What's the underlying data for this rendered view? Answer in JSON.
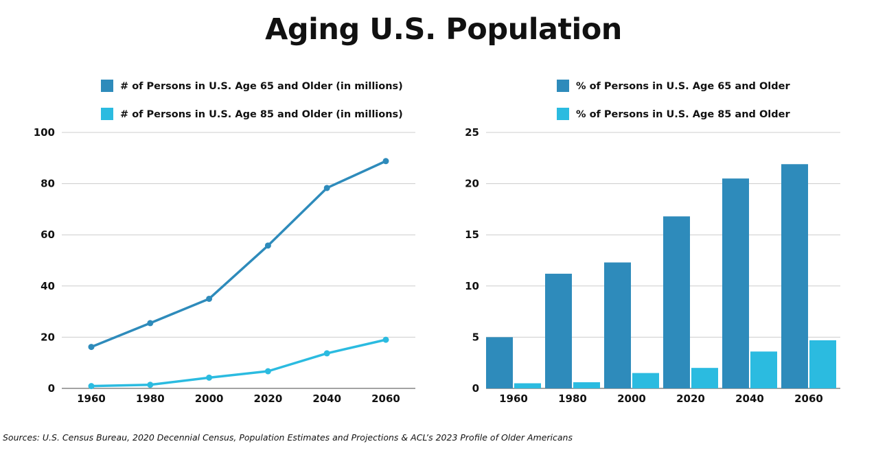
{
  "title": "Aging U.S. Population",
  "sources": "Sources: U.S. Census Bureau, 2020 Decennial Census, Population Estimates and Projections & ACL’s 2023 Profile of Older Americans",
  "colors": {
    "dark_blue": "#2e8bbb",
    "light_blue": "#2bbbe0"
  },
  "chart_data": [
    {
      "type": "line",
      "x": [
        "1960",
        "1980",
        "2000",
        "2020",
        "2040",
        "2060"
      ],
      "series": [
        {
          "name": "# of Persons in U.S. Age 65 and Older (in millions)",
          "color": "#2e8bbb",
          "values": [
            16.2,
            25.5,
            35.0,
            55.8,
            78.3,
            88.8
          ]
        },
        {
          "name": "# of Persons in U.S. Age 85 and Older (in millions)",
          "color": "#2bbbe0",
          "values": [
            0.9,
            1.4,
            4.2,
            6.7,
            13.7,
            19.0
          ]
        }
      ],
      "ylim": [
        0,
        100
      ],
      "yticks": [
        0,
        20,
        40,
        60,
        80,
        100
      ],
      "grid": true,
      "legend": "top"
    },
    {
      "type": "bar",
      "categories": [
        "1960",
        "1980",
        "2000",
        "2020",
        "2040",
        "2060"
      ],
      "series": [
        {
          "name": "% of Persons in U.S. Age 65 and Older",
          "color": "#2e8bbb",
          "values": [
            5.0,
            11.2,
            12.3,
            16.8,
            20.5,
            21.9
          ]
        },
        {
          "name": "% of Persons in U.S. Age 85 and Older",
          "color": "#2bbbe0",
          "values": [
            0.5,
            0.6,
            1.5,
            2.0,
            3.6,
            4.7
          ]
        }
      ],
      "ylim": [
        0,
        25
      ],
      "yticks": [
        0,
        5,
        10,
        15,
        20,
        25
      ],
      "grid": true,
      "legend": "top"
    }
  ]
}
